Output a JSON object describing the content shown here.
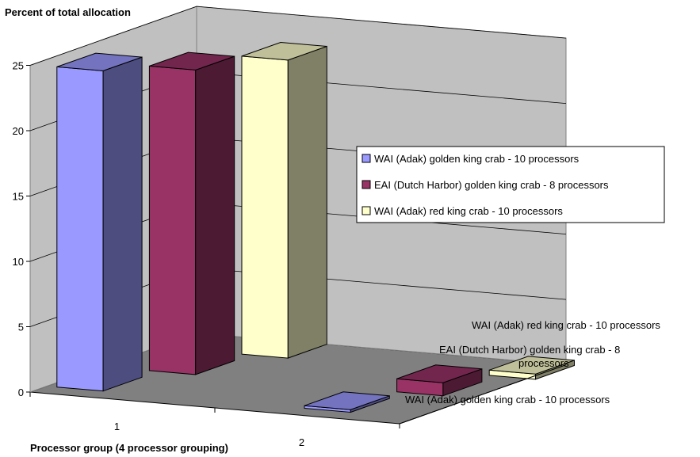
{
  "chart_data": {
    "type": "bar",
    "title": "Percent of total allocation",
    "xlabel": "Processor group (4 processor grouping)",
    "ylabel": "",
    "ylim": [
      0,
      25
    ],
    "yticks": [
      0,
      5,
      10,
      15,
      20,
      25
    ],
    "categories": [
      "1",
      "2"
    ],
    "grid": true,
    "legend_position": "right",
    "depth_axis_labels": [
      "WAI (Adak) golden king crab - 10 processors",
      "EAI (Dutch Harbor) golden king crab - 8 processors",
      "WAI (Adak) red king crab - 10 processors"
    ],
    "series": [
      {
        "name": "WAI (Adak) golden king crab - 10 processors",
        "color": "#9999ff",
        "values": [
          24.5,
          0.2
        ]
      },
      {
        "name": "EAI (Dutch Harbor) golden king crab - 8 processors",
        "color": "#993366",
        "values": [
          23.3,
          1.0
        ]
      },
      {
        "name": "WAI (Adak) red king crab - 10 processors",
        "color": "#ffffcc",
        "values": [
          22.8,
          0.4
        ]
      }
    ]
  }
}
